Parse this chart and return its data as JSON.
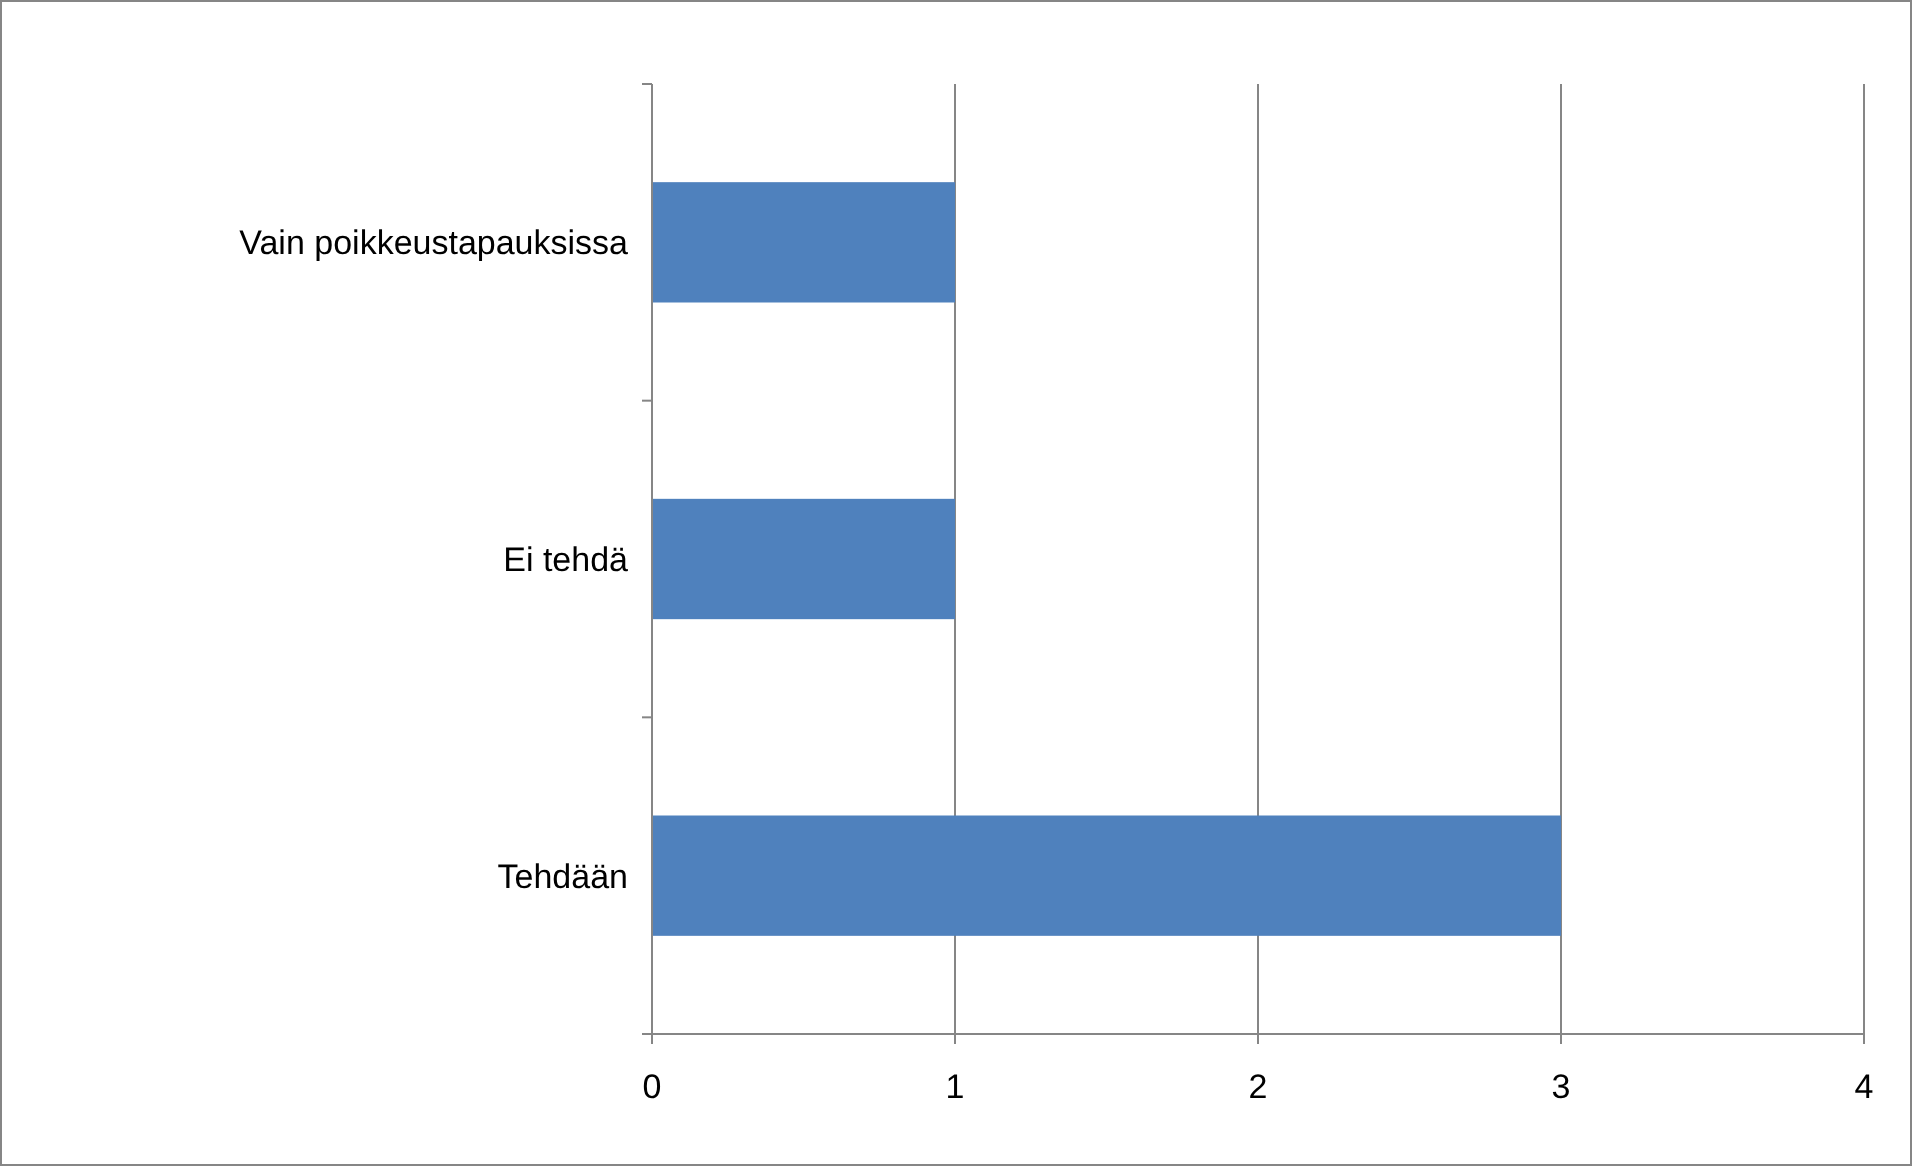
{
  "chart_data": {
    "type": "bar",
    "orientation": "horizontal",
    "categories": [
      "Vain poikkeustapauksissa",
      "Ei tehdä",
      "Tehdään"
    ],
    "values": [
      1,
      1,
      3
    ],
    "color": "#4f81bd",
    "xlim": [
      0,
      4
    ],
    "xticks": [
      0,
      1,
      2,
      3,
      4
    ],
    "grid": "x"
  }
}
